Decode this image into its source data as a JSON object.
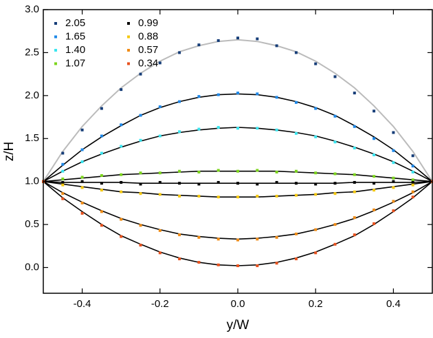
{
  "chart_data": {
    "type": "scatter",
    "x_label": "y/W",
    "y_label": "z/H",
    "x": [
      -0.5,
      -0.45,
      -0.4,
      -0.35,
      -0.3,
      -0.25,
      -0.2,
      -0.15,
      -0.1,
      -0.05,
      0,
      0.05,
      0.1,
      0.15,
      0.2,
      0.25,
      0.3,
      0.35,
      0.4,
      0.45,
      0.5
    ],
    "xlim": [
      -0.5,
      0.5
    ],
    "ylim": [
      -0.3,
      3.0
    ],
    "xticks": [
      -0.4,
      -0.2,
      {
        "value": 0,
        "label": "0.0"
      },
      0.2,
      0.4
    ],
    "yticks": [
      {
        "value": 0,
        "label": "0.0"
      },
      0.5,
      {
        "value": 1,
        "label": "1.0"
      },
      1.5,
      {
        "value": 2,
        "label": "2.0"
      },
      2.5,
      {
        "value": 3,
        "label": "3.0"
      }
    ],
    "legend": "upper-left",
    "series": [
      {
        "name": "2.05",
        "color": "#163d78",
        "values": [
          1.0,
          1.33,
          1.6,
          1.85,
          2.07,
          2.25,
          2.38,
          2.5,
          2.59,
          2.64,
          2.67,
          2.66,
          2.58,
          2.5,
          2.37,
          2.22,
          2.03,
          1.82,
          1.57,
          1.3,
          1.0
        ]
      },
      {
        "name": "1.65",
        "color": "#1e88e8",
        "values": [
          1.0,
          1.2,
          1.37,
          1.53,
          1.66,
          1.77,
          1.87,
          1.93,
          1.99,
          2.01,
          2.03,
          2.02,
          1.98,
          1.92,
          1.85,
          1.76,
          1.64,
          1.5,
          1.36,
          1.18,
          1.0
        ]
      },
      {
        "name": "1.40",
        "color": "#3ae6f0",
        "values": [
          1.0,
          1.12,
          1.23,
          1.33,
          1.41,
          1.48,
          1.53,
          1.58,
          1.61,
          1.63,
          1.62,
          1.62,
          1.6,
          1.56,
          1.52,
          1.46,
          1.39,
          1.31,
          1.22,
          1.11,
          1.0
        ]
      },
      {
        "name": "1.07",
        "color": "#7cd51c",
        "values": [
          1.0,
          1.03,
          1.05,
          1.07,
          1.08,
          1.1,
          1.1,
          1.12,
          1.11,
          1.13,
          1.12,
          1.13,
          1.11,
          1.12,
          1.1,
          1.09,
          1.08,
          1.06,
          1.04,
          1.02,
          1.0
        ]
      },
      {
        "name": "0.99",
        "color": "#000000",
        "values": [
          1.0,
          0.99,
          1.0,
          0.98,
          0.99,
          0.97,
          0.99,
          0.98,
          0.97,
          0.99,
          0.98,
          0.97,
          0.99,
          0.98,
          0.97,
          0.98,
          0.99,
          0.98,
          1.0,
          0.99,
          1.0
        ]
      },
      {
        "name": "0.88",
        "color": "#f4c811",
        "values": [
          1.0,
          0.96,
          0.93,
          0.9,
          0.88,
          0.86,
          0.85,
          0.83,
          0.83,
          0.82,
          0.82,
          0.83,
          0.83,
          0.84,
          0.85,
          0.86,
          0.88,
          0.9,
          0.93,
          0.96,
          1.0
        ]
      },
      {
        "name": "0.57",
        "color": "#f08c16",
        "values": [
          1.0,
          0.86,
          0.75,
          0.65,
          0.56,
          0.49,
          0.43,
          0.38,
          0.35,
          0.33,
          0.32,
          0.33,
          0.35,
          0.39,
          0.44,
          0.5,
          0.58,
          0.67,
          0.77,
          0.88,
          1.0
        ]
      },
      {
        "name": "0.34",
        "color": "#e8521e",
        "values": [
          1.0,
          0.8,
          0.63,
          0.49,
          0.36,
          0.26,
          0.17,
          0.1,
          0.06,
          0.03,
          0.02,
          0.02,
          0.05,
          0.1,
          0.17,
          0.27,
          0.38,
          0.51,
          0.66,
          0.82,
          1.0
        ]
      }
    ],
    "fits": [
      {
        "color": "#bbbbbb",
        "values": [
          1.0,
          1.35,
          1.64,
          1.88,
          2.09,
          2.26,
          2.4,
          2.51,
          2.58,
          2.63,
          2.65,
          2.63,
          2.58,
          2.51,
          2.4,
          2.26,
          2.09,
          1.88,
          1.64,
          1.35,
          1.0
        ]
      },
      {
        "color": "#000000",
        "values": [
          1.0,
          1.19,
          1.37,
          1.52,
          1.65,
          1.77,
          1.86,
          1.93,
          1.98,
          2.01,
          2.02,
          2.01,
          1.98,
          1.93,
          1.86,
          1.77,
          1.65,
          1.52,
          1.37,
          1.19,
          1.0
        ]
      },
      {
        "color": "#000000",
        "values": [
          1.0,
          1.12,
          1.23,
          1.32,
          1.4,
          1.47,
          1.53,
          1.57,
          1.6,
          1.62,
          1.63,
          1.62,
          1.6,
          1.57,
          1.53,
          1.47,
          1.4,
          1.32,
          1.23,
          1.12,
          1.0
        ]
      },
      {
        "color": "#000000",
        "values": [
          1.0,
          1.02,
          1.04,
          1.06,
          1.08,
          1.09,
          1.1,
          1.11,
          1.12,
          1.12,
          1.12,
          1.12,
          1.12,
          1.11,
          1.1,
          1.09,
          1.08,
          1.06,
          1.04,
          1.02,
          1.0
        ]
      },
      {
        "color": "#000000",
        "values": [
          1.0,
          0.99,
          0.99,
          0.99,
          0.99,
          0.98,
          0.98,
          0.98,
          0.98,
          0.98,
          0.98,
          0.98,
          0.98,
          0.98,
          0.98,
          0.98,
          0.99,
          0.99,
          0.99,
          0.99,
          1.0
        ]
      },
      {
        "color": "#000000",
        "values": [
          1.0,
          0.97,
          0.94,
          0.91,
          0.88,
          0.87,
          0.85,
          0.84,
          0.83,
          0.82,
          0.82,
          0.82,
          0.83,
          0.84,
          0.85,
          0.87,
          0.88,
          0.91,
          0.94,
          0.97,
          1.0
        ]
      },
      {
        "color": "#000000",
        "values": [
          1.0,
          0.87,
          0.76,
          0.66,
          0.57,
          0.5,
          0.44,
          0.39,
          0.36,
          0.34,
          0.33,
          0.34,
          0.36,
          0.39,
          0.44,
          0.5,
          0.57,
          0.66,
          0.76,
          0.87,
          1.0
        ]
      },
      {
        "color": "#000000",
        "values": [
          1.0,
          0.81,
          0.65,
          0.5,
          0.37,
          0.27,
          0.18,
          0.11,
          0.06,
          0.03,
          0.02,
          0.03,
          0.06,
          0.11,
          0.18,
          0.27,
          0.37,
          0.5,
          0.65,
          0.81,
          1.0
        ]
      }
    ]
  }
}
